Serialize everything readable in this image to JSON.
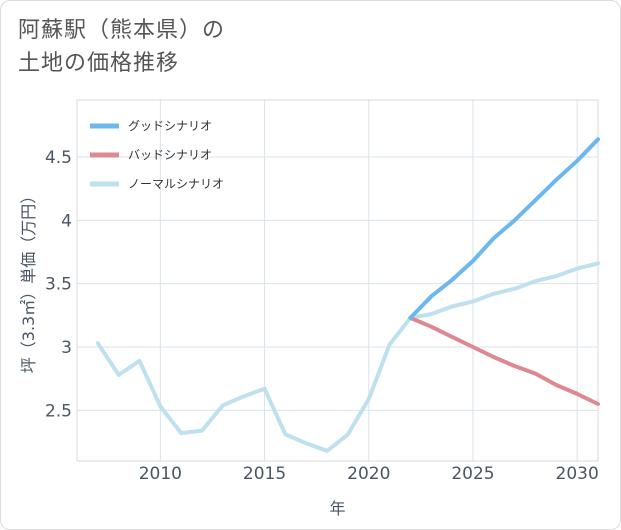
{
  "title": {
    "line1": "阿蘇駅（熊本県）の",
    "line2": "土地の価格推移"
  },
  "chart_data": {
    "type": "line",
    "xlabel": "年",
    "ylabel": "坪（3.3㎡）単価（万円）",
    "xlim": [
      2006,
      2031
    ],
    "ylim": [
      2.1,
      4.95
    ],
    "x_ticks": [
      2010,
      2015,
      2020,
      2025,
      2030
    ],
    "x_tick_labels": [
      "2010",
      "2015",
      "2020",
      "2025",
      "2030"
    ],
    "y_ticks": [
      2.5,
      3,
      3.5,
      4,
      4.5
    ],
    "y_tick_labels": [
      "2.5",
      "3",
      "3.5",
      "4",
      "4.5"
    ],
    "grid": true,
    "legend_position": "top-left",
    "series": [
      {
        "name": "グッドシナリオ",
        "color": "#6cb8ee",
        "x": [
          2022,
          2023,
          2024,
          2025,
          2026,
          2027,
          2028,
          2029,
          2030,
          2031
        ],
        "values": [
          3.23,
          3.4,
          3.53,
          3.68,
          3.86,
          4.0,
          4.16,
          4.32,
          4.47,
          4.64
        ]
      },
      {
        "name": "バッドシナリオ",
        "color": "#dd8993",
        "x": [
          2022,
          2023,
          2024,
          2025,
          2026,
          2027,
          2028,
          2029,
          2030,
          2031
        ],
        "values": [
          3.23,
          3.16,
          3.08,
          3.0,
          2.92,
          2.85,
          2.79,
          2.7,
          2.63,
          2.55
        ]
      },
      {
        "name": "ノーマルシナリオ",
        "color": "#bfe0ef",
        "x": [
          2007,
          2008,
          2009,
          2010,
          2011,
          2012,
          2013,
          2014,
          2015,
          2016,
          2017,
          2018,
          2019,
          2020,
          2021,
          2022,
          2023,
          2024,
          2025,
          2026,
          2027,
          2028,
          2029,
          2030,
          2031
        ],
        "values": [
          3.03,
          2.78,
          2.89,
          2.53,
          2.32,
          2.34,
          2.54,
          2.61,
          2.67,
          2.31,
          2.24,
          2.18,
          2.31,
          2.59,
          3.02,
          3.23,
          3.26,
          3.32,
          3.36,
          3.42,
          3.46,
          3.52,
          3.56,
          3.62,
          3.66
        ]
      }
    ]
  }
}
